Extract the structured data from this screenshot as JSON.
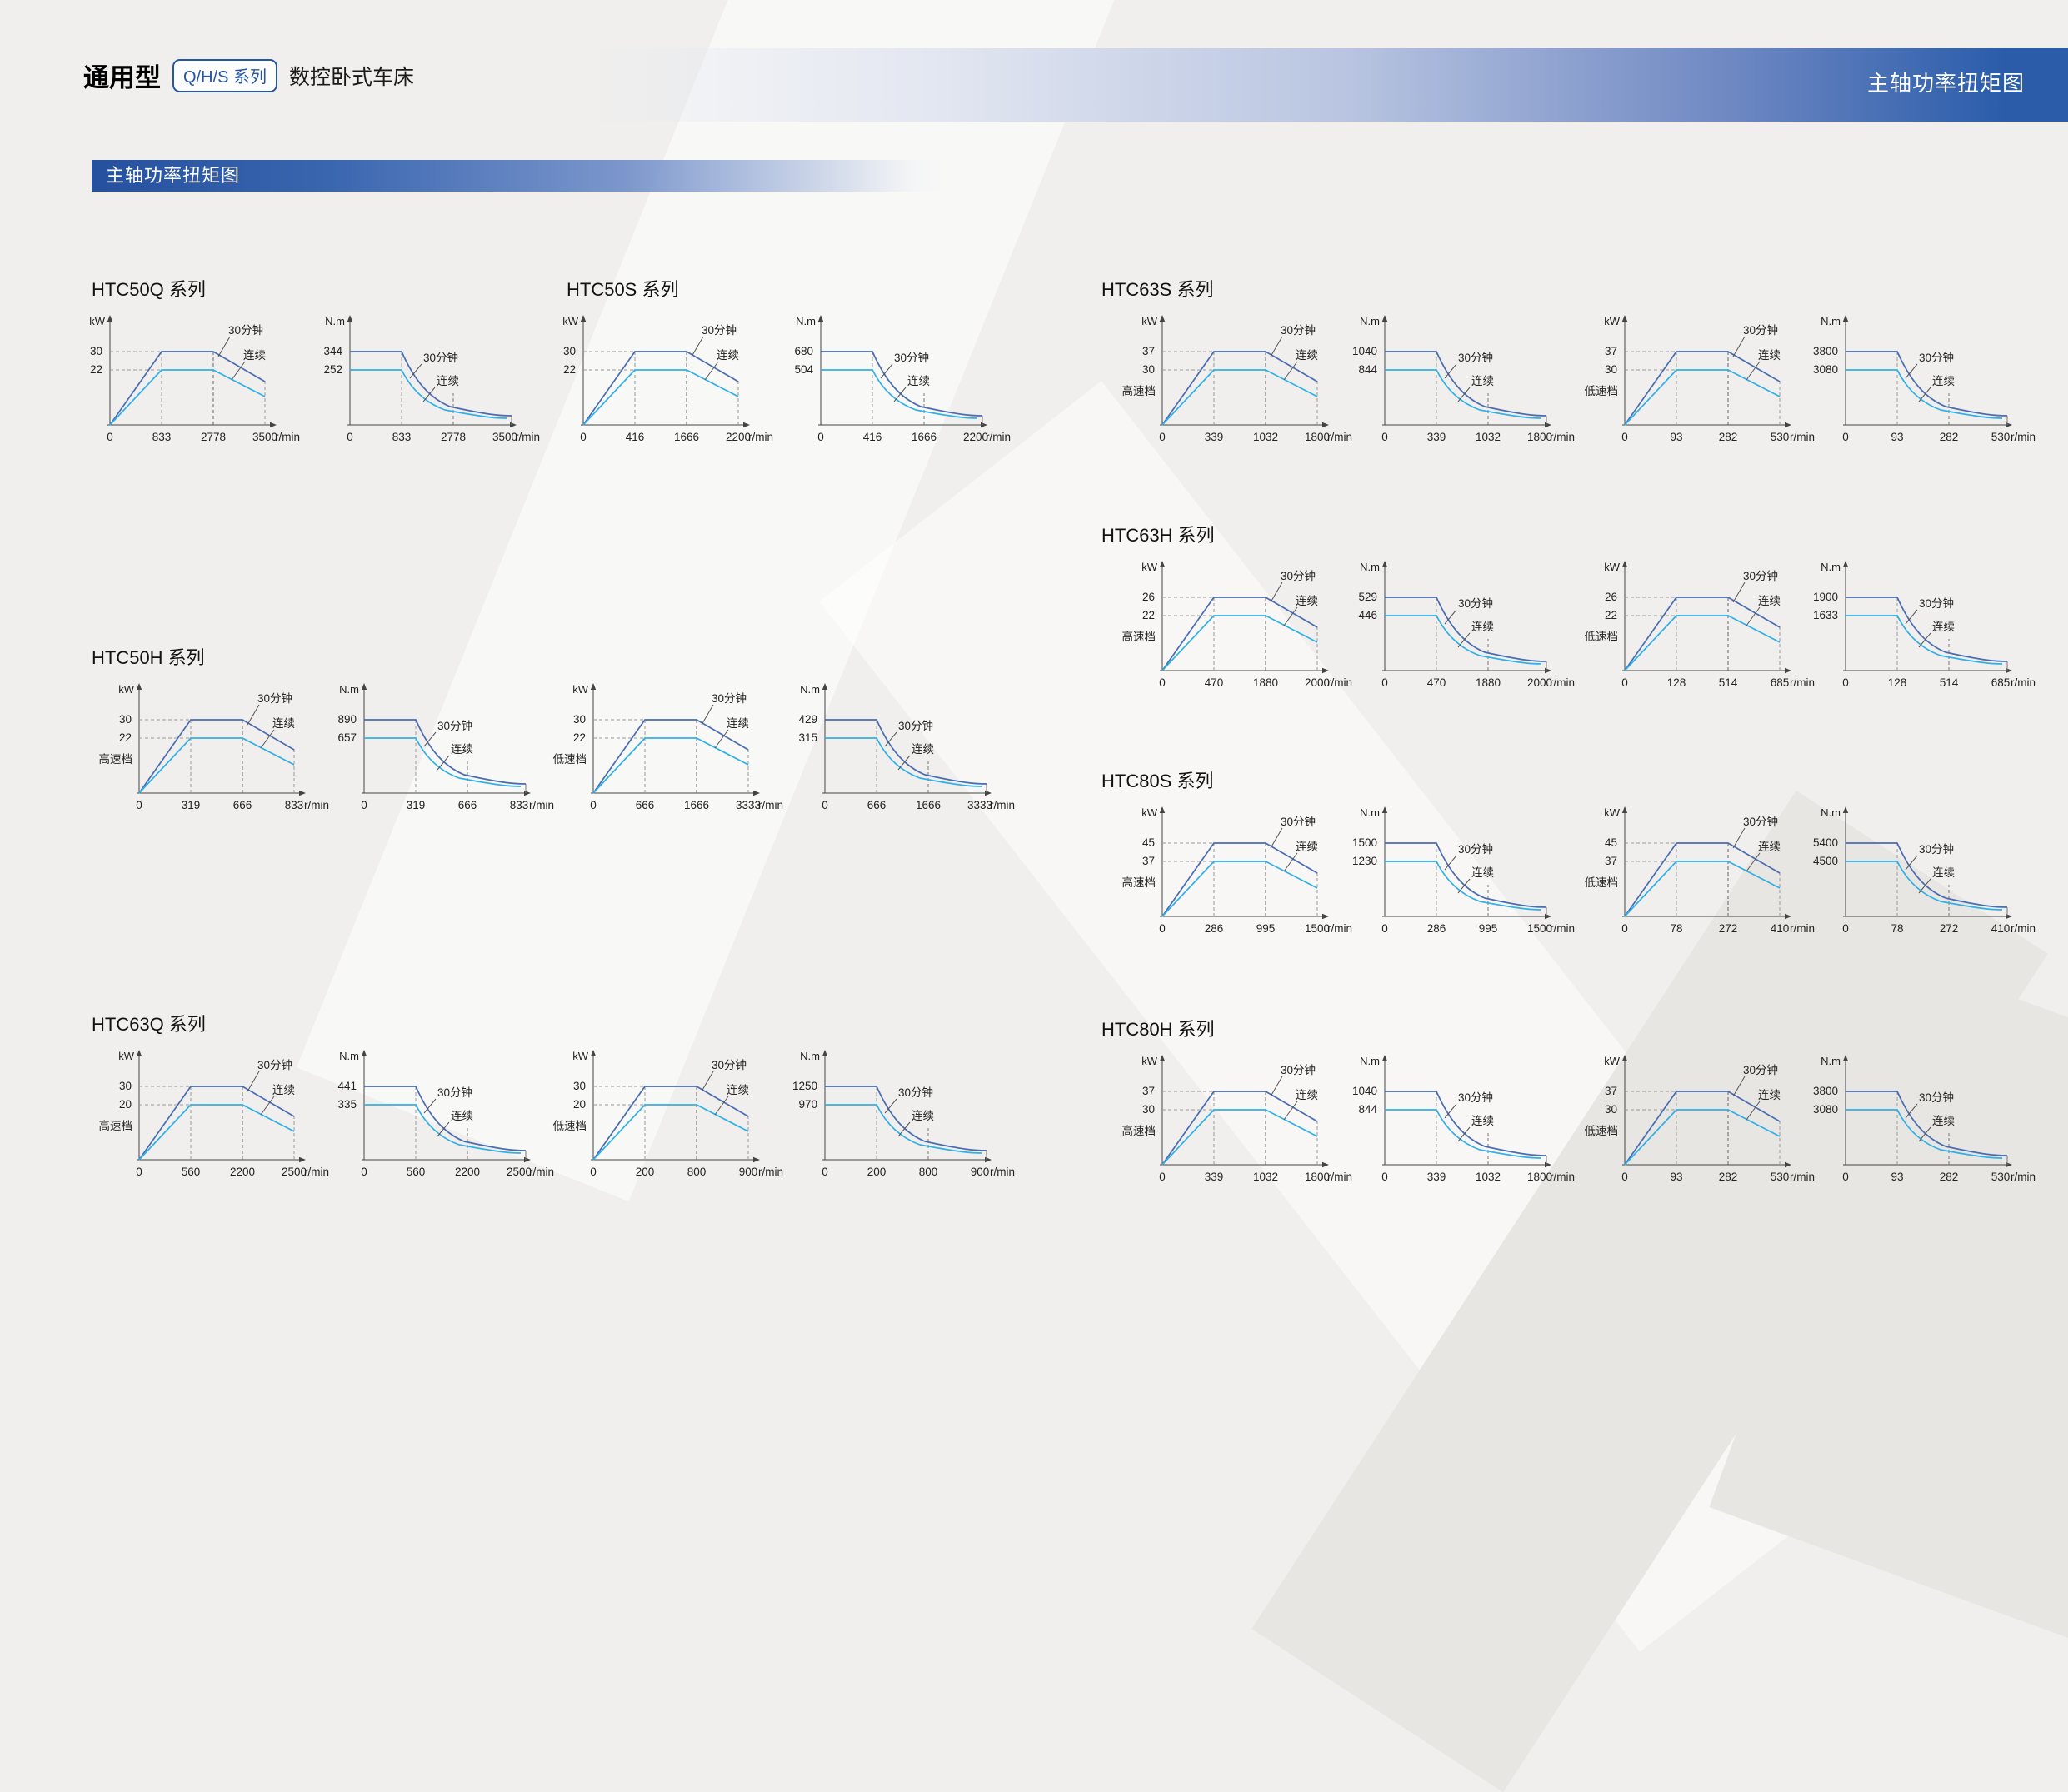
{
  "page": {
    "header": {
      "title_bold": "通用型",
      "badge": "Q/H/S 系列",
      "title_rest": "数控卧式车床",
      "right_label": "主轴功率扭矩图"
    },
    "section_banner": "主轴功率扭矩图"
  },
  "labels": {
    "thirty_min": "30分钟",
    "continuous": "连续"
  },
  "colors": {
    "line_30min": "#4a6cb0",
    "line_continuous": "#2fb0e8",
    "axis": "#444444",
    "guide": "#999999",
    "banner_blue": "#2a5caa"
  },
  "chart_data": [
    {
      "name": "HTC50Q 系列",
      "pos": [
        110,
        330
      ],
      "chart_dx": [
        -30,
        258
      ],
      "charts": [
        {
          "type": "line",
          "kind": "power",
          "gear": null,
          "y_unit": "kW",
          "x_unit": "r/min",
          "y_ticks": [
            30,
            22
          ],
          "x_ticks": [
            0,
            833,
            2778,
            3500
          ],
          "series": [
            "30分钟",
            "连续"
          ]
        },
        {
          "type": "line",
          "kind": "torque",
          "gear": null,
          "y_unit": "N.m",
          "x_unit": "r/min",
          "y_ticks": [
            344,
            252
          ],
          "x_ticks": [
            0,
            833,
            2778,
            3500
          ],
          "series": [
            "30分钟",
            "连续"
          ]
        }
      ]
    },
    {
      "name": "HTC50S 系列",
      "pos": [
        680,
        330
      ],
      "chart_dx": [
        -32,
        253
      ],
      "charts": [
        {
          "type": "line",
          "kind": "power",
          "gear": null,
          "y_unit": "kW",
          "x_unit": "r/min",
          "y_ticks": [
            30,
            22
          ],
          "x_ticks": [
            0,
            416,
            1666,
            2200
          ],
          "series": [
            "30分钟",
            "连续"
          ]
        },
        {
          "type": "line",
          "kind": "torque",
          "gear": null,
          "y_unit": "N.m",
          "x_unit": "r/min",
          "y_ticks": [
            680,
            504
          ],
          "x_ticks": [
            0,
            416,
            1666,
            2200
          ],
          "series": [
            "30分钟",
            "连续"
          ]
        }
      ]
    },
    {
      "name": "HTC63S 系列",
      "pos": [
        1322,
        330
      ],
      "chart_dx": [
        21,
        288,
        576,
        841
      ],
      "charts": [
        {
          "type": "line",
          "kind": "power",
          "gear": "高速档",
          "y_unit": "kW",
          "x_unit": "r/min",
          "y_ticks": [
            37,
            30
          ],
          "x_ticks": [
            0,
            339,
            1032,
            1800
          ],
          "series": [
            "30分钟",
            "连续"
          ]
        },
        {
          "type": "line",
          "kind": "torque",
          "gear": null,
          "y_unit": "N.m",
          "x_unit": "r/min",
          "y_ticks": [
            1040,
            844
          ],
          "x_ticks": [
            0,
            339,
            1032,
            1800
          ],
          "series": [
            "30分钟",
            "连续"
          ]
        },
        {
          "type": "line",
          "kind": "power",
          "gear": "低速档",
          "y_unit": "kW",
          "x_unit": "r/min",
          "y_ticks": [
            37,
            30
          ],
          "x_ticks": [
            0,
            93,
            282,
            530
          ],
          "series": [
            "30分钟",
            "连续"
          ]
        },
        {
          "type": "line",
          "kind": "torque",
          "gear": null,
          "y_unit": "N.m",
          "x_unit": "r/min",
          "y_ticks": [
            3800,
            3080
          ],
          "x_ticks": [
            0,
            93,
            282,
            530
          ],
          "series": [
            "30分钟",
            "连续"
          ]
        }
      ]
    },
    {
      "name": "HTC50H 系列",
      "pos": [
        110,
        772
      ],
      "chart_dx": [
        5,
        275,
        550,
        828
      ],
      "charts": [
        {
          "type": "line",
          "kind": "power",
          "gear": "高速档",
          "y_unit": "kW",
          "x_unit": "r/min",
          "y_ticks": [
            30,
            22
          ],
          "x_ticks": [
            0,
            319,
            666,
            833
          ],
          "series": [
            "30分钟",
            "连续"
          ]
        },
        {
          "type": "line",
          "kind": "torque",
          "gear": null,
          "y_unit": "N.m",
          "x_unit": "r/min",
          "y_ticks": [
            890,
            657
          ],
          "x_ticks": [
            0,
            319,
            666,
            833
          ],
          "series": [
            "30分钟",
            "连续"
          ]
        },
        {
          "type": "line",
          "kind": "power",
          "gear": "低速档",
          "y_unit": "kW",
          "x_unit": "r/min",
          "y_ticks": [
            30,
            22
          ],
          "x_ticks": [
            0,
            666,
            1666,
            3333
          ],
          "series": [
            "30分钟",
            "连续"
          ]
        },
        {
          "type": "line",
          "kind": "torque",
          "gear": null,
          "y_unit": "N.m",
          "x_unit": "r/min",
          "y_ticks": [
            429,
            315
          ],
          "x_ticks": [
            0,
            666,
            1666,
            3333
          ],
          "series": [
            "30分钟",
            "连续"
          ]
        }
      ]
    },
    {
      "name": "HTC63H 系列",
      "pos": [
        1322,
        625
      ],
      "chart_dx": [
        21,
        288,
        576,
        841
      ],
      "charts": [
        {
          "type": "line",
          "kind": "power",
          "gear": "高速档",
          "y_unit": "kW",
          "x_unit": "r/min",
          "y_ticks": [
            26,
            22
          ],
          "x_ticks": [
            0,
            470,
            1880,
            2000
          ],
          "series": [
            "30分钟",
            "连续"
          ]
        },
        {
          "type": "line",
          "kind": "torque",
          "gear": null,
          "y_unit": "N.m",
          "x_unit": "r/min",
          "y_ticks": [
            529,
            446
          ],
          "x_ticks": [
            0,
            470,
            1880,
            2000
          ],
          "series": [
            "30分钟",
            "连续"
          ]
        },
        {
          "type": "line",
          "kind": "power",
          "gear": "低速档",
          "y_unit": "kW",
          "x_unit": "r/min",
          "y_ticks": [
            26,
            22
          ],
          "x_ticks": [
            0,
            128,
            514,
            685
          ],
          "series": [
            "30分钟",
            "连续"
          ]
        },
        {
          "type": "line",
          "kind": "torque",
          "gear": null,
          "y_unit": "N.m",
          "x_unit": "r/min",
          "y_ticks": [
            1900,
            1633
          ],
          "x_ticks": [
            0,
            128,
            514,
            685
          ],
          "series": [
            "30分钟",
            "连续"
          ]
        }
      ]
    },
    {
      "name": "HTC80S 系列",
      "pos": [
        1322,
        920
      ],
      "chart_dx": [
        21,
        288,
        576,
        841
      ],
      "charts": [
        {
          "type": "line",
          "kind": "power",
          "gear": "高速档",
          "y_unit": "kW",
          "x_unit": "r/min",
          "y_ticks": [
            45,
            37
          ],
          "x_ticks": [
            0,
            286,
            995,
            1500
          ],
          "series": [
            "30分钟",
            "连续"
          ]
        },
        {
          "type": "line",
          "kind": "torque",
          "gear": null,
          "y_unit": "N.m",
          "x_unit": "r/min",
          "y_ticks": [
            1500,
            1230
          ],
          "x_ticks": [
            0,
            286,
            995,
            1500
          ],
          "series": [
            "30分钟",
            "连续"
          ]
        },
        {
          "type": "line",
          "kind": "power",
          "gear": "低速档",
          "y_unit": "kW",
          "x_unit": "r/min",
          "y_ticks": [
            45,
            37
          ],
          "x_ticks": [
            0,
            78,
            272,
            410
          ],
          "series": [
            "30分钟",
            "连续"
          ]
        },
        {
          "type": "line",
          "kind": "torque",
          "gear": null,
          "y_unit": "N.m",
          "x_unit": "r/min",
          "y_ticks": [
            5400,
            4500
          ],
          "x_ticks": [
            0,
            78,
            272,
            410
          ],
          "series": [
            "30分钟",
            "连续"
          ]
        }
      ]
    },
    {
      "name": "HTC63Q 系列",
      "pos": [
        110,
        1212
      ],
      "chart_dx": [
        5,
        275,
        550,
        828
      ],
      "charts": [
        {
          "type": "line",
          "kind": "power",
          "gear": "高速档",
          "y_unit": "kW",
          "x_unit": "r/min",
          "y_ticks": [
            30,
            20
          ],
          "x_ticks": [
            0,
            560,
            2200,
            2500
          ],
          "series": [
            "30分钟",
            "连续"
          ]
        },
        {
          "type": "line",
          "kind": "torque",
          "gear": null,
          "y_unit": "N.m",
          "x_unit": "r/min",
          "y_ticks": [
            441,
            335
          ],
          "x_ticks": [
            0,
            560,
            2200,
            2500
          ],
          "series": [
            "30分钟",
            "连续"
          ]
        },
        {
          "type": "line",
          "kind": "power",
          "gear": "低速档",
          "y_unit": "kW",
          "x_unit": "r/min",
          "y_ticks": [
            30,
            20
          ],
          "x_ticks": [
            0,
            200,
            800,
            900
          ],
          "series": [
            "30分钟",
            "连续"
          ]
        },
        {
          "type": "line",
          "kind": "torque",
          "gear": null,
          "y_unit": "N.m",
          "x_unit": "r/min",
          "y_ticks": [
            1250,
            970
          ],
          "x_ticks": [
            0,
            200,
            800,
            900
          ],
          "series": [
            "30分钟",
            "连续"
          ]
        }
      ]
    },
    {
      "name": "HTC80H 系列",
      "pos": [
        1322,
        1218
      ],
      "chart_dx": [
        21,
        288,
        576,
        841
      ],
      "charts": [
        {
          "type": "line",
          "kind": "power",
          "gear": "高速档",
          "y_unit": "kW",
          "x_unit": "r/min",
          "y_ticks": [
            37,
            30
          ],
          "x_ticks": [
            0,
            339,
            1032,
            1800
          ],
          "series": [
            "30分钟",
            "连续"
          ]
        },
        {
          "type": "line",
          "kind": "torque",
          "gear": null,
          "y_unit": "N.m",
          "x_unit": "r/min",
          "y_ticks": [
            1040,
            844
          ],
          "x_ticks": [
            0,
            339,
            1032,
            1800
          ],
          "series": [
            "30分钟",
            "连续"
          ]
        },
        {
          "type": "line",
          "kind": "power",
          "gear": "低速档",
          "y_unit": "kW",
          "x_unit": "r/min",
          "y_ticks": [
            37,
            30
          ],
          "x_ticks": [
            0,
            93,
            282,
            530
          ],
          "series": [
            "30分钟",
            "连续"
          ]
        },
        {
          "type": "line",
          "kind": "torque",
          "gear": null,
          "y_unit": "N.m",
          "x_unit": "r/min",
          "y_ticks": [
            3800,
            3080
          ],
          "x_ticks": [
            0,
            93,
            282,
            530
          ],
          "series": [
            "30分钟",
            "连续"
          ]
        }
      ]
    }
  ]
}
